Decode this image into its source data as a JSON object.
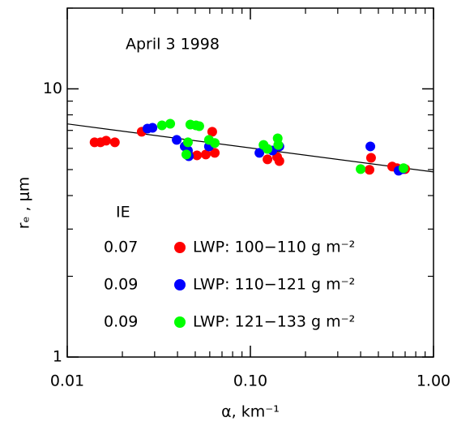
{
  "chart_data": {
    "type": "scatter",
    "annotation": "April 3 1998",
    "legend_title": "IE",
    "x_label": "α, km⁻¹",
    "y_label": "rₑ , μm",
    "xlog": true,
    "ylog": true,
    "xlim": [
      0.01,
      1.0
    ],
    "ylim": [
      1,
      20
    ],
    "xticks": [
      {
        "value": 0.01,
        "label": "0.01"
      },
      {
        "value": 0.1,
        "label": "0.10"
      },
      {
        "value": 1.0,
        "label": "1.00"
      }
    ],
    "yticks": [
      1,
      10
    ],
    "xminorticks": [
      0.02,
      0.03,
      0.04,
      0.05,
      0.06,
      0.07,
      0.08,
      0.09,
      0.2,
      0.3,
      0.4,
      0.5,
      0.6,
      0.7,
      0.8,
      0.9
    ],
    "yminorticks": [
      2,
      3,
      4,
      5,
      6,
      7,
      8,
      9,
      20
    ],
    "fit_line": {
      "color": "#000000",
      "x": [
        0.01,
        1.0
      ],
      "values": [
        7.4,
        4.9
      ]
    },
    "series": [
      {
        "name": "LWP: 100−110 g m⁻²",
        "ie": "0.07",
        "color": "#ff0000",
        "x": [
          0.0141,
          0.0152,
          0.0163,
          0.0182,
          0.0255,
          0.0456,
          0.0511,
          0.0571,
          0.0619,
          0.0639,
          0.124,
          0.14,
          0.144,
          0.447,
          0.456,
          0.595,
          0.632,
          0.7
        ],
        "values": [
          6.32,
          6.32,
          6.41,
          6.32,
          6.92,
          5.77,
          5.65,
          5.69,
          6.92,
          5.77,
          5.46,
          5.57,
          5.38,
          4.99,
          5.53,
          5.13,
          5.06,
          5.02
        ]
      },
      {
        "name": "LWP: 110−121 g m⁻²",
        "ie": "0.09",
        "color": "#0000ff",
        "x": [
          0.0274,
          0.0292,
          0.0396,
          0.0438,
          0.0456,
          0.0461,
          0.0594,
          0.112,
          0.132,
          0.144,
          0.452,
          0.645,
          0.679
        ],
        "values": [
          7.11,
          7.16,
          6.45,
          6.1,
          5.89,
          5.61,
          6.1,
          5.77,
          5.89,
          6.1,
          6.1,
          4.95,
          5.02
        ]
      },
      {
        "name": "LWP: 121−133 g m⁻²",
        "ie": "0.09",
        "color": "#00ff00",
        "x": [
          0.0329,
          0.0365,
          0.047,
          0.0505,
          0.0526,
          0.0594,
          0.0639,
          0.0456,
          0.0447,
          0.118,
          0.124,
          0.141,
          0.142,
          0.4,
          0.686
        ],
        "values": [
          7.31,
          7.41,
          7.36,
          7.31,
          7.26,
          6.45,
          6.28,
          6.32,
          5.69,
          6.18,
          5.97,
          6.54,
          6.18,
          5.02,
          5.06
        ]
      }
    ]
  }
}
